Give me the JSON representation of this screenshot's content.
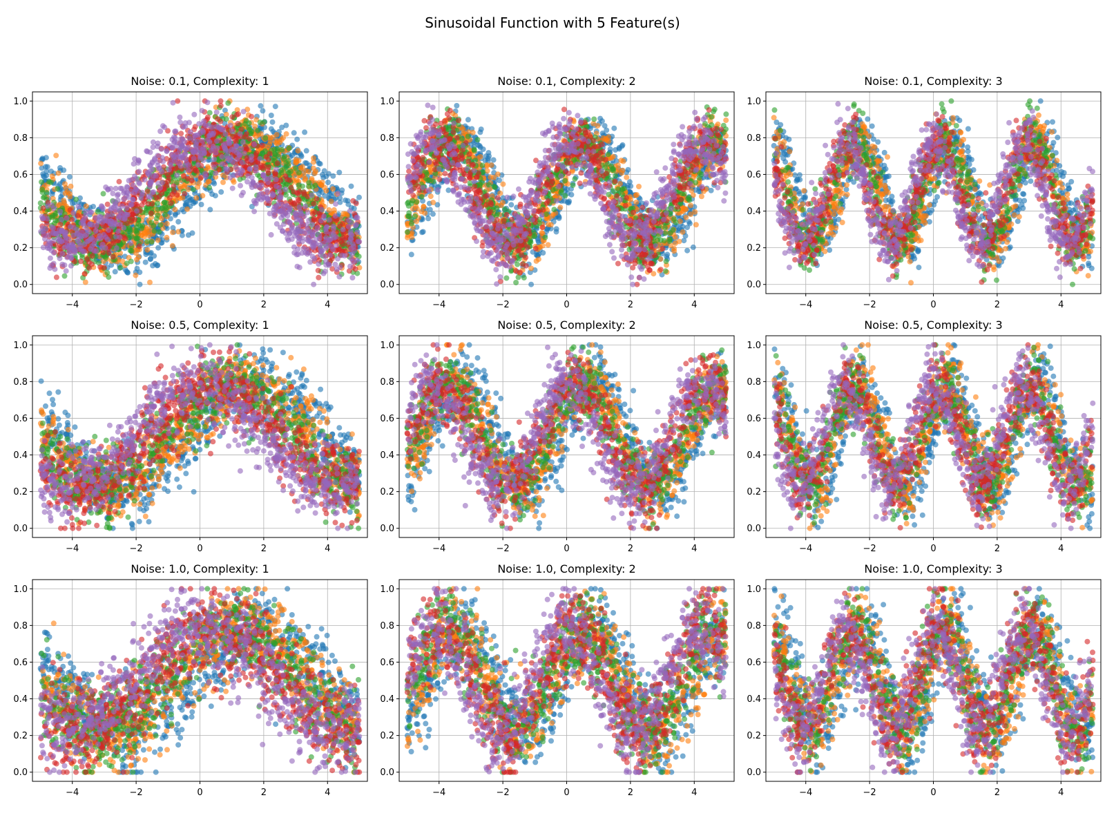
{
  "chart_data": {
    "type": "scatter",
    "title": "Sinusoidal Function with 5 Feature(s)",
    "series_colors": [
      "#1f77b4",
      "#ff7f0e",
      "#2ca02c",
      "#d62728",
      "#9467bd"
    ],
    "point_alpha": 0.6,
    "features": 5,
    "subplots": [
      {
        "title": "Noise: 0.1, Complexity: 1",
        "noise": 0.1,
        "complexity": 1
      },
      {
        "title": "Noise: 0.1, Complexity: 2",
        "noise": 0.1,
        "complexity": 2
      },
      {
        "title": "Noise: 0.1, Complexity: 3",
        "noise": 0.1,
        "complexity": 3
      },
      {
        "title": "Noise: 0.5, Complexity: 1",
        "noise": 0.5,
        "complexity": 1
      },
      {
        "title": "Noise: 0.5, Complexity: 2",
        "noise": 0.5,
        "complexity": 2
      },
      {
        "title": "Noise: 0.5, Complexity: 3",
        "noise": 0.5,
        "complexity": 3
      },
      {
        "title": "Noise: 1.0, Complexity: 1",
        "noise": 1.0,
        "complexity": 1
      },
      {
        "title": "Noise: 1.0, Complexity: 2",
        "noise": 1.0,
        "complexity": 2
      },
      {
        "title": "Noise: 1.0, Complexity: 3",
        "noise": 1.0,
        "complexity": 3
      }
    ],
    "xlim": [
      -5.25,
      5.25
    ],
    "ylim": [
      -0.05,
      1.05
    ],
    "x_range": [
      -5,
      5
    ],
    "xticks": [
      -4,
      -2,
      0,
      2,
      4
    ],
    "xtick_labels": [
      "−4",
      "−2",
      "0",
      "2",
      "4"
    ],
    "yticks": [
      0.0,
      0.2,
      0.4,
      0.6,
      0.8,
      1.0
    ],
    "ytick_labels": [
      "0.0",
      "0.2",
      "0.4",
      "0.6",
      "0.8",
      "1.0"
    ],
    "grid": true,
    "points_per_series": 700
  }
}
